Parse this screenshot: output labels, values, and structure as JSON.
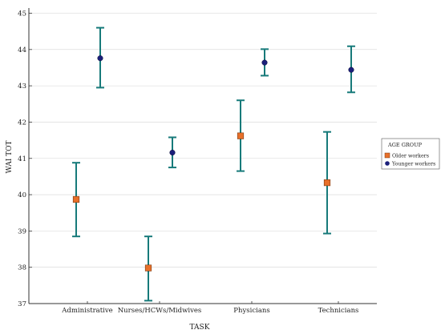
{
  "chart_data": {
    "type": "scatter",
    "subtype": "error-bar",
    "title": "",
    "xlabel": "TASK",
    "ylabel": "WAI TOT",
    "ylim": [
      37,
      45
    ],
    "yticks": [
      37,
      38,
      39,
      40,
      41,
      42,
      43,
      44,
      45
    ],
    "grid": "horizontal",
    "legend": {
      "title": "AGE GROUP",
      "placement": "right"
    },
    "categories": [
      "Administrative",
      "Nurses/HCWs/Midwives",
      "Physicians",
      "Technicians"
    ],
    "series": [
      {
        "name": "Older workers",
        "marker": "square",
        "color": "#e8702a",
        "values": [
          39.87,
          37.98,
          41.62,
          40.33
        ],
        "lower": [
          38.85,
          37.08,
          40.65,
          38.93
        ],
        "upper": [
          40.88,
          38.85,
          42.6,
          41.73
        ]
      },
      {
        "name": "Younger workers",
        "marker": "circle",
        "color": "#1b1f7a",
        "values": [
          43.76,
          41.16,
          43.64,
          43.44
        ],
        "lower": [
          42.95,
          40.75,
          43.28,
          42.82
        ],
        "upper": [
          44.6,
          41.58,
          44.01,
          44.09
        ]
      }
    ],
    "errorbar_color": "#177a7a"
  }
}
